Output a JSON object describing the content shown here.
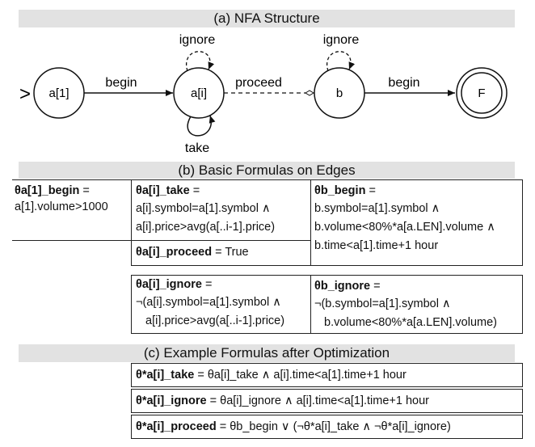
{
  "sections": {
    "nfa_title": "(a) NFA Structure",
    "basic_title": "(b) Basic Formulas on Edges",
    "opt_title": "(c) Example Formulas after Optimization"
  },
  "nfa": {
    "states": {
      "a1": "a[1]",
      "ai": "a[i]",
      "b": "b",
      "f": "F"
    },
    "edges": {
      "begin1": "begin",
      "proceed": "proceed",
      "begin2": "begin",
      "ignore_ai": "ignore",
      "ignore_b": "ignore",
      "take": "take"
    },
    "start_marker": ">"
  },
  "basic": {
    "a1_begin": {
      "name": "θa[1]_begin",
      "eq": " =",
      "lines": [
        "a[1].volume>1000"
      ]
    },
    "ai_take": {
      "name": "θa[i]_take",
      "eq": " =",
      "lines": [
        "a[i].symbol=a[1].symbol ∧",
        "a[i].price>avg(a[..i-1].price)"
      ]
    },
    "ai_proceed": {
      "name": "θa[i]_proceed",
      "eq": " = True"
    },
    "b_begin": {
      "name": "θb_begin",
      "eq": " =",
      "lines": [
        "b.symbol=a[1].symbol ∧",
        "b.volume<80%*a[a.LEN].volume ∧",
        "b.time<a[1].time+1 hour"
      ]
    },
    "ai_ignore": {
      "name": "θa[i]_ignore",
      "eq": " =",
      "lines": [
        "¬(a[i].symbol=a[1].symbol ∧",
        "a[i].price>avg(a[..i-1].price)"
      ]
    },
    "b_ignore": {
      "name": "θb_ignore",
      "eq": " =",
      "lines": [
        "¬(b.symbol=a[1].symbol ∧",
        "b.volume<80%*a[a.LEN].volume)"
      ]
    }
  },
  "optimized": {
    "take": {
      "name": "θ*a[i]_take",
      "rest": " = θa[i]_take ∧ a[i].time<a[1].time+1 hour"
    },
    "ignore": {
      "name": "θ*a[i]_ignore",
      "rest": " = θa[i]_ignore ∧ a[i].time<a[1].time+1 hour"
    },
    "proceed": {
      "name": "θ*a[i]_proceed",
      "rest": " = θb_begin ∨ (¬θ*a[i]_take ∧ ¬θ*a[i]_ignore)"
    }
  }
}
